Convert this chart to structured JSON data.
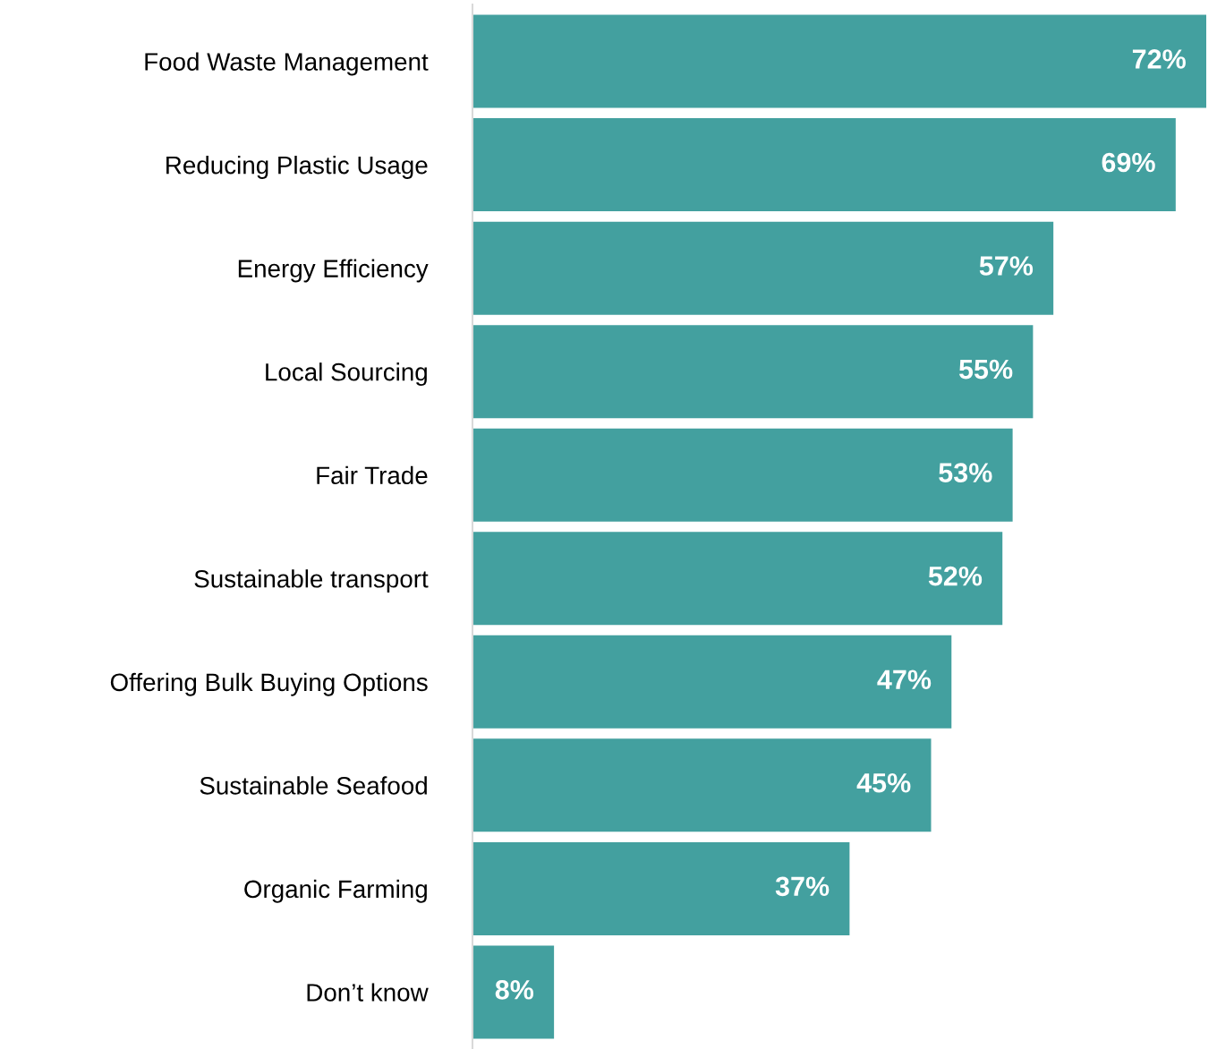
{
  "chart_data": {
    "type": "bar",
    "orientation": "horizontal",
    "categories": [
      "Food Waste Management",
      "Reducing Plastic Usage",
      "Energy Efficiency",
      "Local Sourcing",
      "Fair Trade",
      "Sustainable transport",
      "Offering Bulk Buying Options",
      "Sustainable Seafood",
      "Organic Farming",
      "Don’t know"
    ],
    "values": [
      72,
      69,
      57,
      55,
      53,
      52,
      47,
      45,
      37,
      8
    ],
    "value_labels": [
      "72%",
      "69%",
      "57%",
      "55%",
      "53%",
      "52%",
      "47%",
      "45%",
      "37%",
      "8%"
    ],
    "color": "#43a09f",
    "xlim": [
      0,
      72
    ],
    "tick_labels": "y",
    "grid": false,
    "legend": false
  }
}
